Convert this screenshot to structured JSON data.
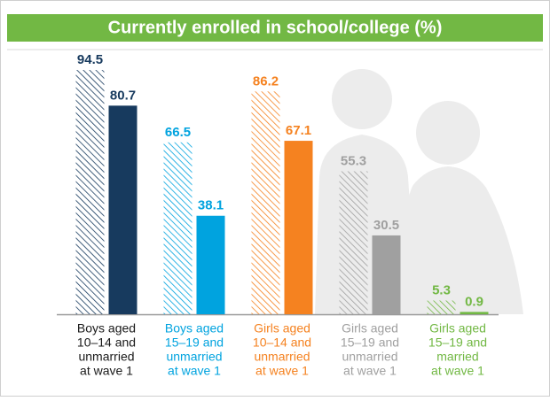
{
  "chart_data": {
    "type": "bar",
    "title": "Currently enrolled in school/college (%)",
    "categories": [
      [
        "Boys aged",
        "10–14 and",
        "unmarried",
        "at wave 1"
      ],
      [
        "Boys aged",
        "15–19 and",
        "unmarried",
        "at wave 1"
      ],
      [
        "Girls aged",
        "10–14 and",
        "unmarried",
        "at wave 1"
      ],
      [
        "Girls aged",
        "15–19 and",
        "unmarried",
        "at wave 1"
      ],
      [
        "Girls aged",
        "15–19 and",
        "married",
        "at wave 1"
      ]
    ],
    "colors": [
      "#173a5e",
      "#00a3df",
      "#f58220",
      "#a0a0a0",
      "#72b844"
    ],
    "series": [
      {
        "pattern": "hatched",
        "values": [
          94.5,
          66.5,
          86.2,
          55.3,
          5.3
        ]
      },
      {
        "pattern": "solid",
        "values": [
          80.7,
          38.1,
          67.1,
          30.5,
          0.9
        ]
      }
    ],
    "ylim": [
      0,
      100
    ]
  }
}
